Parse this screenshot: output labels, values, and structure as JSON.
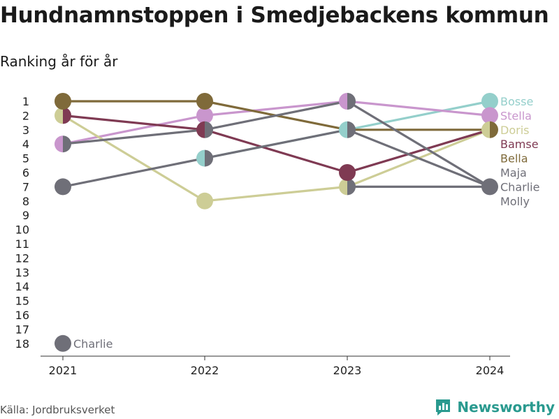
{
  "title": "Hundnamnstoppen i Smedjebackens kommun",
  "subtitle": "Ranking år för år",
  "source": "Källa: Jordbruksverket",
  "brand": "Newsworthy",
  "chart_data": {
    "type": "line",
    "x": [
      "2021",
      "2022",
      "2023",
      "2024"
    ],
    "y_ticks": [
      1,
      2,
      3,
      4,
      5,
      6,
      7,
      8,
      9,
      10,
      11,
      12,
      13,
      14,
      15,
      16,
      17,
      18
    ],
    "ylim": [
      1,
      18
    ],
    "y_reversed": true,
    "series": [
      {
        "name": "Bosse",
        "color": "#94cfcb",
        "values": [
          null,
          5,
          3,
          1
        ],
        "label_rank": 1
      },
      {
        "name": "Stella",
        "color": "#c996cd",
        "values": [
          4,
          2,
          1,
          2
        ],
        "label_rank": 2
      },
      {
        "name": "Doris",
        "color": "#cdcd96",
        "values": [
          2,
          8,
          7,
          3
        ],
        "label_rank": 3
      },
      {
        "name": "Bamse",
        "color": "#7f3a53",
        "values": [
          2,
          3,
          6,
          3
        ],
        "label_rank": 4
      },
      {
        "name": "Bella",
        "color": "#7f6a3a",
        "values": [
          1,
          1,
          3,
          3
        ],
        "label_rank": 5
      },
      {
        "name": "Maja",
        "color": "#6f6f78",
        "values": [
          4,
          3,
          1,
          7
        ],
        "label_rank": 6
      },
      {
        "name": "Charlie",
        "color": "#6f6f78",
        "values": [
          7,
          5,
          3,
          7
        ],
        "label_rank": 7
      },
      {
        "name": "Molly",
        "color": "#6f6f78",
        "values": [
          null,
          null,
          7,
          7
        ],
        "label_rank": 8
      }
    ],
    "annotation": {
      "label": "Charlie",
      "x": "2021",
      "y": 18,
      "color": "#6f6f78"
    }
  }
}
